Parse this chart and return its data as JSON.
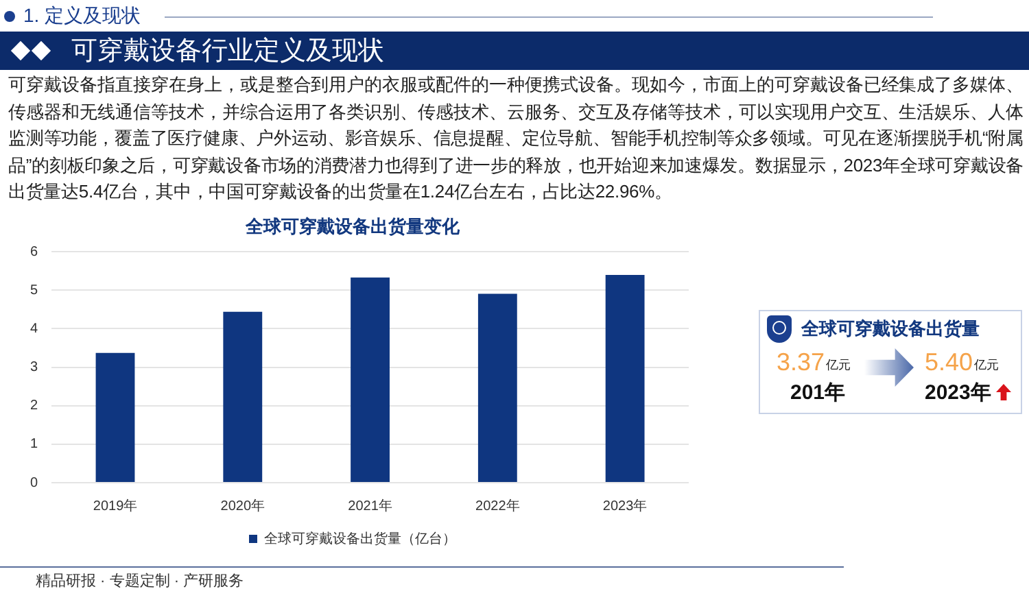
{
  "chart_data": [
    {
      "type": "bar",
      "title": "全球可穿戴设备出货量变化",
      "categories": [
        "2019年",
        "2020年",
        "2021年",
        "2022年",
        "2023年"
      ],
      "series": [
        {
          "name": "全球可穿戴设备出货量（亿台）",
          "color": "#0f3680",
          "values": [
            3.37,
            4.44,
            5.33,
            4.91,
            5.4
          ]
        }
      ],
      "ylim": [
        0,
        6
      ],
      "yticks": [
        0,
        1,
        2,
        3,
        4,
        5,
        6
      ],
      "grid": "y",
      "legend": "bottom",
      "annotations": [
        "1. 定义及现状",
        "可穿戴设备行业定义及现状",
        "可穿戴设备指直接穿在身上，或是整合到用户的衣服或配件的一种便携式设备。现如今，市面上的可穿戴设备已经集成了多媒体、传感器和无线通信等技术，并综合运用了各类识别、传感技术、云服务、交互及存储等技术，可以实现用户交互、生活娱乐、人体监测等功能，覆盖了医疗健康、户外运动、影音娱乐、信息提醒、定位导航、智能手机控制等众多领域。可见在逐渐摆脱手机“附属品”的刻板印象之后，可穿戴设备市场的消费潜力也得到了进一步的释放，也开始迎来加速爆发。数据显示，2023年全球可穿戴设备出货量达5.4亿台，其中，中国可穿戴设备的出货量在1.24亿台左右，占比达22.96%。",
        "精品研报 · 专题定制 · 产研服务"
      ]
    },
    {
      "type": "other",
      "title": "全球可穿戴设备出货量",
      "annotations": [
        "3.37",
        "亿元",
        "201年",
        "5.40",
        "亿元",
        "2023年"
      ]
    }
  ]
}
